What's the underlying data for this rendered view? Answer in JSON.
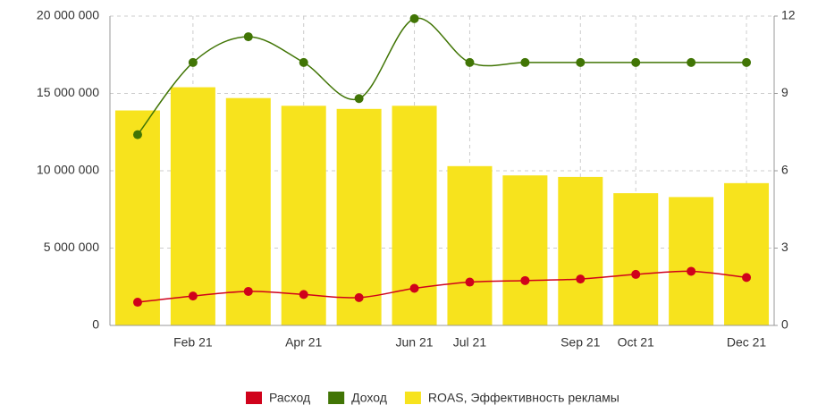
{
  "chart_data": {
    "type": "bar-line",
    "categories": [
      null,
      "Feb 21",
      null,
      "Apr 21",
      null,
      "Jun 21",
      "Jul 21",
      null,
      "Sep 21",
      "Oct 21",
      null,
      "Dec 21"
    ],
    "series": [
      {
        "name": "ROAS, Эффективность рекламы",
        "type": "bar",
        "color": "#f7e31d",
        "axis": "y",
        "values": [
          13900000,
          15400000,
          14700000,
          14200000,
          14000000,
          14200000,
          10300000,
          9700000,
          9600000,
          8550000,
          8300000,
          9200000
        ]
      },
      {
        "name": "Расход",
        "type": "line",
        "color": "#d0021b",
        "axis": "y",
        "values": [
          1500000,
          1900000,
          2200000,
          2000000,
          1800000,
          2400000,
          2800000,
          2900000,
          3000000,
          3300000,
          3500000,
          3100000
        ]
      },
      {
        "name": "Доход",
        "type": "line",
        "color": "#417505",
        "axis": "y2",
        "values": [
          7.4,
          10.2,
          11.2,
          10.2,
          8.8,
          11.9,
          10.2,
          10.2,
          10.2,
          10.2,
          10.2,
          10.2
        ]
      }
    ],
    "legend_order": [
      1,
      2,
      0
    ],
    "ylim": [
      0,
      20000000
    ],
    "yticks": [
      0,
      {
        "value": 5000000,
        "label": "5 000 000"
      },
      {
        "value": 10000000,
        "label": "10 000 000"
      },
      {
        "value": 15000000,
        "label": "15 000 000"
      },
      {
        "value": 20000000,
        "label": "20 000 000"
      }
    ],
    "y2lim": [
      0,
      12
    ],
    "y2ticks": [
      0,
      3,
      6,
      9,
      12
    ],
    "grid": true,
    "legend": "bottom"
  }
}
